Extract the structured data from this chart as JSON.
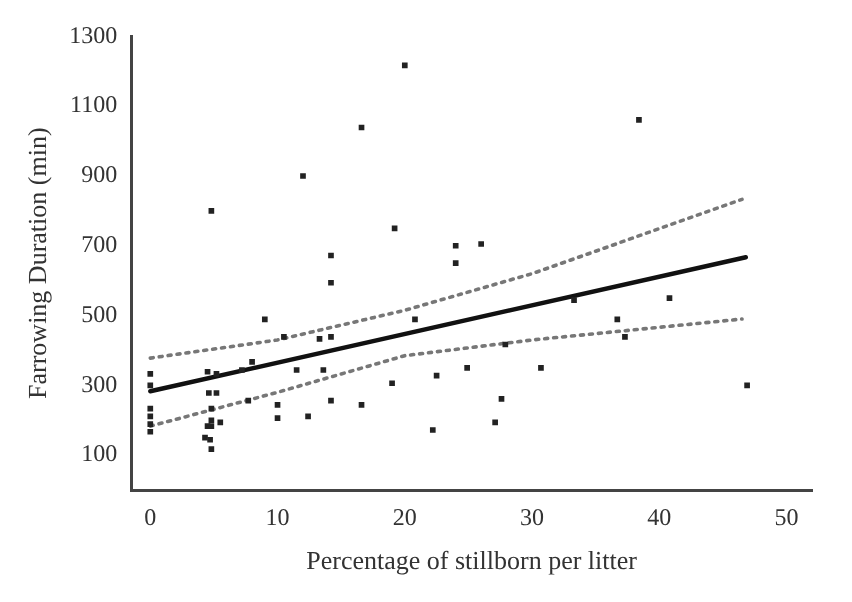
{
  "chart_data": {
    "type": "scatter",
    "xlabel": "Percentage of stillborn per litter",
    "ylabel": "Farrowing Duration (min)",
    "xlim": [
      -1.5,
      52
    ],
    "ylim": [
      0,
      1300
    ],
    "xticks": [
      0,
      10,
      20,
      30,
      40,
      50
    ],
    "yticks": [
      100,
      300,
      500,
      700,
      900,
      1100,
      1300
    ],
    "grid": false,
    "legend": false,
    "series": [
      {
        "color": "#222222",
        "marker": "square",
        "x": [
          0,
          0,
          0,
          0,
          0,
          0,
          4.5,
          4.6,
          5.2,
          4.8,
          4.5,
          4.8,
          4.8,
          4.3,
          4.7,
          4.8,
          5.5,
          5.2,
          4.8,
          7.2,
          8,
          7.7,
          9,
          10,
          10,
          10.5,
          11.5,
          12,
          12.4,
          13.3,
          13.6,
          14.2,
          14.2,
          14.2,
          14.2,
          16.6,
          16.6,
          19,
          19.2,
          20,
          20.8,
          22.2,
          22.5,
          24,
          24,
          24.9,
          26,
          27.1,
          27.6,
          27.9,
          30.7,
          33.3,
          36.7,
          37.3,
          38.4,
          40.8,
          46.9
        ],
        "values": [
          333,
          300,
          233,
          211,
          189,
          167,
          339,
          278,
          278,
          233,
          183,
          200,
          183,
          150,
          144,
          117,
          194,
          333,
          800,
          344,
          367,
          256,
          489,
          244,
          206,
          439,
          344,
          900,
          211,
          433,
          344,
          439,
          594,
          256,
          672,
          244,
          1039,
          306,
          750,
          1217,
          489,
          172,
          328,
          650,
          700,
          350,
          705,
          194,
          261,
          417,
          350,
          544,
          489,
          439,
          1061,
          550,
          300
        ]
      },
      {
        "type": "line",
        "color": "#111111",
        "line_style": "solid",
        "marker": "none",
        "x": [
          0,
          46.8
        ],
        "values": [
          283,
          667
        ]
      },
      {
        "type": "line",
        "color": "#777777",
        "line_style": "dotted",
        "marker": "none",
        "x": [
          0,
          10,
          20,
          30,
          46.5
        ],
        "values": [
          378,
          430,
          515,
          620,
          833
        ]
      },
      {
        "type": "line",
        "color": "#777777",
        "line_style": "dotted",
        "marker": "none",
        "x": [
          0,
          10,
          20,
          30,
          46.5
        ],
        "values": [
          183,
          280,
          385,
          430,
          490
        ]
      }
    ]
  }
}
